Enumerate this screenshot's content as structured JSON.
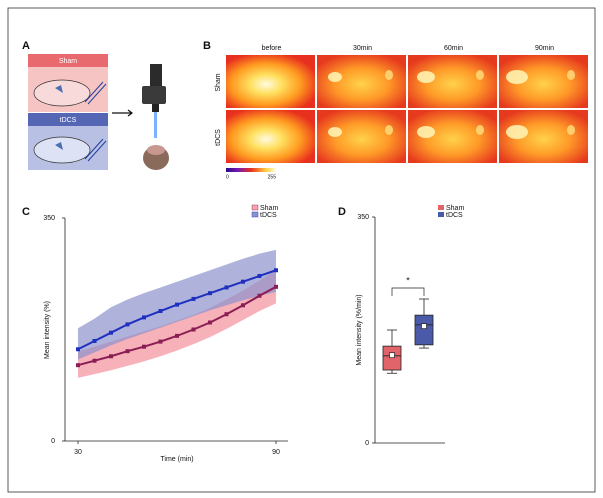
{
  "panels": {
    "A": {
      "label": "A",
      "rows": [
        "Sham",
        "tDCS"
      ]
    },
    "B": {
      "label": "B",
      "columns": [
        "before",
        "30min",
        "60min",
        "90min"
      ],
      "rows": [
        "Sham",
        "tDCS"
      ],
      "colorbar_ticks": [
        "0",
        "255"
      ]
    }
  },
  "chart_data": [
    {
      "type": "line",
      "label": "C",
      "x_label": "Time (min)",
      "y_label": "Mean intensity (%)",
      "x": [
        30,
        35,
        40,
        45,
        50,
        55,
        60,
        65,
        70,
        75,
        80,
        85,
        90
      ],
      "xlim": [
        30,
        90
      ],
      "xticks": [
        30,
        90
      ],
      "ylim": [
        0,
        350
      ],
      "yticks": [
        0,
        350
      ],
      "series": [
        {
          "name": "Sham",
          "color": "#8b1d55",
          "band_color": "#f5a3ad",
          "values": [
            119,
            126,
            133,
            141,
            148,
            156,
            165,
            175,
            186,
            199,
            213,
            228,
            242
          ],
          "lower": [
            99,
            105,
            111,
            118,
            125,
            133,
            142,
            152,
            163,
            176,
            190,
            204,
            216
          ],
          "upper": [
            140,
            148,
            156,
            164,
            172,
            180,
            189,
            198,
            209,
            222,
            236,
            252,
            268
          ]
        },
        {
          "name": "tDCS",
          "color": "#1f30c0",
          "band_color": "#8d92cc",
          "values": [
            144,
            157,
            170,
            183,
            194,
            204,
            214,
            223,
            232,
            241,
            250,
            259,
            268
          ],
          "lower": [
            128,
            139,
            150,
            160,
            169,
            178,
            187,
            196,
            205,
            213,
            221,
            228,
            234
          ],
          "upper": [
            177,
            192,
            210,
            222,
            232,
            241,
            250,
            259,
            268,
            277,
            286,
            294,
            300
          ]
        }
      ]
    },
    {
      "type": "box",
      "label": "D",
      "y_label": "Mean intensity (%/min)",
      "annotation": "*",
      "ylim": [
        0,
        350
      ],
      "yticks": [
        0,
        350
      ],
      "series": [
        {
          "name": "Sham",
          "color": "#e0646a",
          "min": 108,
          "q1": 113,
          "median": 135,
          "mean": 136,
          "q3": 150,
          "max": 175
        },
        {
          "name": "tDCS",
          "color": "#4a5aa8",
          "min": 147,
          "q1": 152,
          "median": 183,
          "mean": 181,
          "q3": 198,
          "max": 223
        }
      ]
    }
  ]
}
